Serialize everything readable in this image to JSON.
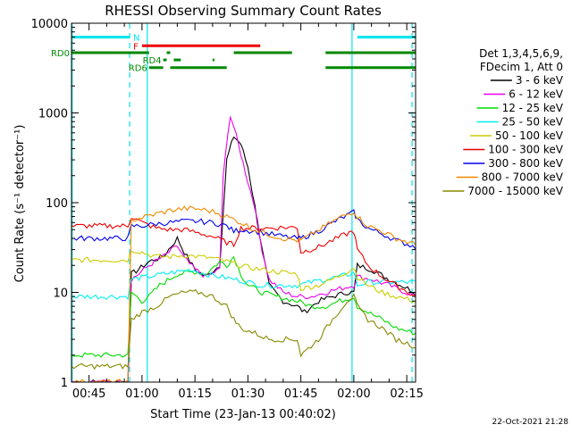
{
  "chart_data": {
    "type": "line",
    "title": "RHESSI Observing Summary Count Rates",
    "xlabel": "Start Time (23-Jan-13 00:40:02)",
    "ylabel": "Count Rate (s⁻¹ detector⁻¹)",
    "y_scale": "log",
    "ylim": [
      1,
      10000
    ],
    "xlim_minutes": [
      40.03,
      137.5
    ],
    "x_ticks": [
      {
        "t": 45,
        "label": "00:45"
      },
      {
        "t": 60,
        "label": "01:00"
      },
      {
        "t": 75,
        "label": "01:15"
      },
      {
        "t": 90,
        "label": "01:30"
      },
      {
        "t": 105,
        "label": "01:45"
      },
      {
        "t": 120,
        "label": "02:00"
      },
      {
        "t": 135,
        "label": "02:15"
      }
    ],
    "y_ticks": [
      {
        "v": 1,
        "label": "1"
      },
      {
        "v": 10,
        "label": "10"
      },
      {
        "v": 100,
        "label": "100"
      },
      {
        "v": 1000,
        "label": "1000"
      },
      {
        "v": 10000,
        "label": "10000"
      }
    ],
    "legend_header": [
      "Det 1,3,4,5,6,9,",
      "FDecim 1, Att 0"
    ],
    "legend_position": "right",
    "timestamp": "22-Oct-2021 21:28",
    "flag_bars": [
      {
        "label": "N",
        "color": "#00e5ee",
        "level": 7000,
        "segments": [
          [
            40,
            56.5
          ],
          [
            121,
            137.5
          ]
        ]
      },
      {
        "label": "F",
        "color": "#ee0000",
        "level": 5600,
        "segments": [
          [
            60,
            93.5
          ]
        ]
      },
      {
        "label": "RD0",
        "color": "#008800",
        "level": 4700,
        "segments": [
          [
            40,
            62
          ],
          [
            67,
            68
          ],
          [
            86,
            102.5
          ],
          [
            112,
            137.5
          ]
        ]
      },
      {
        "label": "RD4",
        "color": "#008800",
        "level": 3900,
        "segments": [
          [
            66,
            67
          ],
          [
            69,
            71
          ],
          [
            80,
            80.5
          ]
        ]
      },
      {
        "label": "RD6",
        "color": "#008800",
        "level": 3200,
        "segments": [
          [
            62,
            66
          ],
          [
            68,
            84
          ],
          [
            112,
            137.5
          ]
        ]
      }
    ],
    "vertical_markers": [
      {
        "t": 40.2,
        "color": "#00e5ee",
        "style": "solid"
      },
      {
        "t": 56.5,
        "color": "#00e5ee",
        "style": "dashed"
      },
      {
        "t": 61.5,
        "color": "#00e5ee",
        "style": "solid"
      },
      {
        "t": 119.5,
        "color": "#00e5ee",
        "style": "solid"
      },
      {
        "t": 136.5,
        "color": "#00e5ee",
        "style": "dashed"
      }
    ],
    "series": [
      {
        "name": "3 - 6 keV",
        "color": "#000000",
        "x": [
          40,
          50,
          56,
          57,
          59,
          62,
          66,
          70,
          72,
          75,
          78,
          82,
          84,
          86,
          88,
          90,
          92,
          94,
          96,
          100,
          104,
          106,
          110,
          114,
          118,
          120,
          121,
          125,
          130,
          137.5
        ],
        "values": [
          1,
          1,
          1,
          16,
          18,
          22,
          25,
          40,
          28,
          18,
          15,
          20,
          300,
          550,
          450,
          250,
          90,
          30,
          12,
          8,
          7,
          6,
          8,
          9,
          10,
          10,
          20,
          18,
          14,
          10
        ]
      },
      {
        "name": "6 - 12 keV",
        "color": "#ee00ee",
        "x": [
          40,
          56,
          57,
          59,
          62,
          66,
          70,
          72,
          75,
          78,
          82,
          83,
          85,
          86,
          88,
          90,
          92,
          94,
          96,
          100,
          104,
          108,
          112,
          116,
          120,
          121,
          125,
          130,
          137.5
        ],
        "values": [
          1,
          1,
          14,
          16,
          20,
          25,
          33,
          24,
          18,
          15,
          18,
          200,
          950,
          700,
          350,
          170,
          90,
          30,
          14,
          10,
          9,
          9,
          10,
          11,
          12,
          15,
          14,
          12,
          9
        ]
      },
      {
        "name": "12 - 25 keV",
        "color": "#00dd00",
        "x": [
          40,
          56,
          57,
          60,
          62,
          65,
          70,
          75,
          78,
          82,
          84,
          86,
          88,
          90,
          94,
          98,
          104,
          108,
          112,
          116,
          120,
          121,
          124,
          128,
          132,
          137.5
        ],
        "values": [
          2,
          2,
          10,
          8,
          9,
          12,
          16,
          17,
          16,
          22,
          20,
          25,
          16,
          12,
          10,
          9,
          8,
          7,
          7,
          8,
          9,
          7,
          6,
          5,
          4,
          3.5
        ]
      },
      {
        "name": "25 - 50 keV",
        "color": "#00eeee",
        "x": [
          40,
          56,
          57,
          62,
          66,
          70,
          74,
          78,
          82,
          86,
          90,
          94,
          98,
          104,
          108,
          112,
          116,
          119,
          120,
          121,
          124,
          128,
          132,
          137.5
        ],
        "values": [
          9,
          9,
          14,
          15,
          16,
          17,
          18,
          16,
          15,
          14,
          13,
          12,
          12,
          12,
          13,
          14,
          15,
          16,
          17,
          12,
          13,
          13,
          13,
          13
        ]
      },
      {
        "name": "50 - 100 keV",
        "color": "#cccc00",
        "x": [
          40,
          56,
          57,
          60,
          64,
          68,
          72,
          76,
          80,
          84,
          88,
          90,
          94,
          98,
          104,
          105,
          110,
          114,
          118,
          120,
          121,
          124,
          128,
          132,
          137.5
        ],
        "values": [
          23,
          23,
          30,
          28,
          25,
          25,
          26,
          25,
          24,
          22,
          20,
          19,
          18,
          17,
          16,
          11,
          12,
          14,
          17,
          19,
          15,
          12,
          10,
          9,
          8
        ]
      },
      {
        "name": "100 - 300 keV",
        "color": "#ee0000",
        "x": [
          40,
          48,
          56,
          57,
          60,
          64,
          68,
          72,
          76,
          80,
          84,
          86,
          88,
          92,
          96,
          100,
          104,
          105,
          110,
          114,
          118,
          120,
          121,
          124,
          128,
          132,
          137.5
        ],
        "values": [
          55,
          55,
          55,
          70,
          60,
          52,
          50,
          50,
          46,
          42,
          36,
          34,
          52,
          52,
          52,
          53,
          53,
          28,
          32,
          38,
          45,
          48,
          30,
          20,
          15,
          12,
          9
        ]
      },
      {
        "name": "300 - 800 keV",
        "color": "#0000ee",
        "x": [
          40,
          48,
          56,
          57,
          60,
          64,
          68,
          72,
          76,
          80,
          84,
          86,
          88,
          92,
          96,
          100,
          104,
          105,
          110,
          114,
          118,
          120,
          121,
          124,
          128,
          132,
          137.5
        ],
        "values": [
          40,
          40,
          40,
          55,
          55,
          58,
          60,
          62,
          62,
          60,
          55,
          48,
          50,
          48,
          45,
          42,
          40,
          40,
          48,
          60,
          72,
          78,
          65,
          52,
          45,
          38,
          32
        ]
      },
      {
        "name": "800 - 7000 keV",
        "color": "#ee8800",
        "x": [
          40,
          56,
          57,
          60,
          64,
          68,
          72,
          76,
          80,
          84,
          88,
          92,
          96,
          100,
          104,
          105,
          108,
          112,
          116,
          120,
          121,
          124,
          128,
          132,
          137.5
        ],
        "values": [
          1,
          1,
          64,
          68,
          75,
          82,
          86,
          85,
          80,
          70,
          60,
          50,
          44,
          40,
          38,
          38,
          44,
          55,
          68,
          80,
          70,
          55,
          48,
          40,
          34
        ]
      },
      {
        "name": "7000 - 15000 keV",
        "color": "#888800",
        "x": [
          40,
          48,
          56,
          57,
          60,
          64,
          68,
          72,
          76,
          80,
          84,
          86,
          88,
          92,
          96,
          100,
          104,
          105,
          110,
          114,
          118,
          120,
          121,
          124,
          128,
          132,
          137.5
        ],
        "values": [
          1.5,
          1.5,
          1.5,
          5,
          6,
          7,
          9,
          10,
          10,
          9,
          7,
          5,
          4,
          3.5,
          3,
          3,
          3,
          2,
          3,
          5,
          8,
          9,
          7,
          5,
          4,
          3,
          2.5
        ]
      }
    ]
  }
}
